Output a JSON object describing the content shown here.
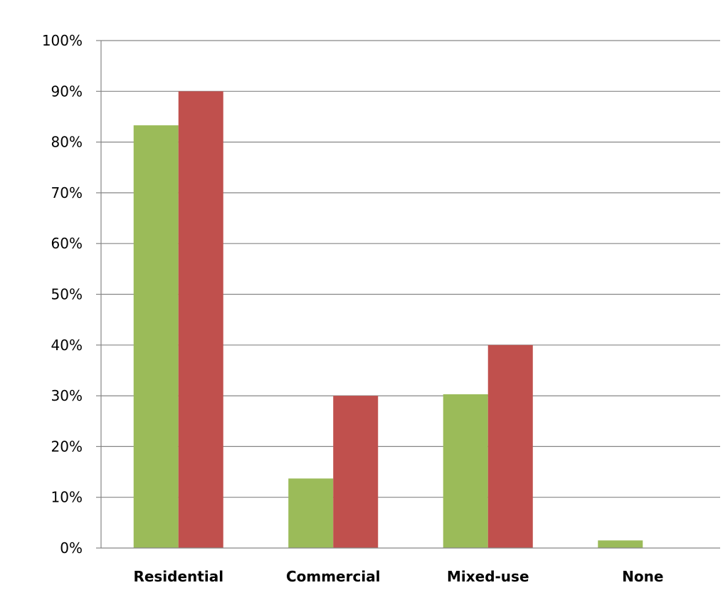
{
  "chart_data": {
    "type": "bar",
    "title": "",
    "xlabel": "",
    "ylabel": "",
    "categories": [
      "Residential",
      "Commercial",
      "Mixed-use",
      "None"
    ],
    "series": [
      {
        "values": [
          83.3,
          13.7,
          30.3,
          1.5
        ],
        "color": "#9BBB59"
      },
      {
        "values": [
          90,
          30,
          40,
          0
        ],
        "color": "#C0504D"
      }
    ],
    "ylim": [
      0,
      100
    ],
    "yticks": [
      0,
      10,
      20,
      30,
      40,
      50,
      60,
      70,
      80,
      90,
      100
    ],
    "ytick_labels": [
      "0%",
      "10%",
      "20%",
      "30%",
      "40%",
      "50%",
      "60%",
      "70%",
      "80%",
      "90%",
      "100%"
    ],
    "grid": true,
    "legend": "none"
  }
}
